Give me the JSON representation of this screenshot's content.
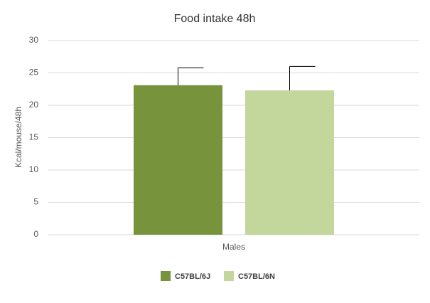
{
  "chart_data": {
    "type": "bar",
    "title": "Food intake 48h",
    "y_label": "Kcal/mouse/48h",
    "categories": [
      "Males"
    ],
    "series": [
      {
        "name": "C57BL/6J",
        "color": "#77933c",
        "values": [
          23.1
        ],
        "errors": [
          2.7
        ]
      },
      {
        "name": "C57BL/6N",
        "color": "#c3d69b",
        "values": [
          22.3
        ],
        "errors": [
          3.7
        ]
      }
    ],
    "ylim": [
      0,
      30
    ],
    "yticks": [
      0,
      5,
      10,
      15,
      20,
      25,
      30
    ],
    "grid": true,
    "legend": "bottom"
  }
}
